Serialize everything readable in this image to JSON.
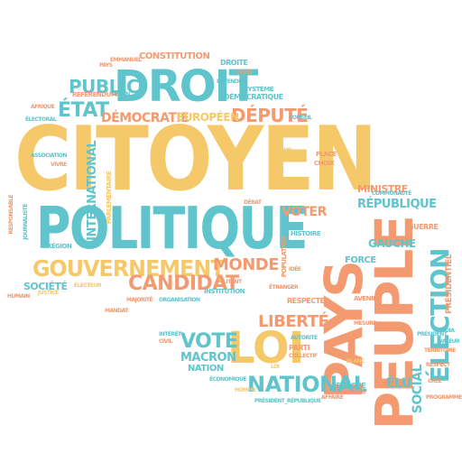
{
  "colors": {
    "yellow": "#f5c96a",
    "teal": "#5fc4cc",
    "orange": "#f39a70",
    "background": "#ffffff"
  },
  "words": {
    "citoyen": "CITOYEN",
    "politique": "POLITIQUE",
    "droit": "DROIT",
    "gouvernement": "GOUVERNEMENT",
    "pays": "PAYS",
    "peuple": "PEUPLE",
    "loi": "LOI",
    "election": "ÉLECTION",
    "candidat": "CANDIDAT",
    "national": "NATIONAL",
    "vote": "VOTE",
    "liberte": "LIBERTÉ",
    "etat": "ÉTAT",
    "democratie": "DÉMOCRATIE",
    "depute": "DÉPUTÉ",
    "monde": "MONDE",
    "public": "PUBLIC",
    "constitution": "CONSTITUTION",
    "republique": "RÉPUBLIQUE",
    "gauche": "GAUCHE",
    "europeen": "EUROPÉEN",
    "international": "INTERNATIONAL",
    "macron": "MACRON",
    "voter": "VOTER",
    "ministre": "MINISTRE",
    "social": "SOCIAL",
    "societe": "SOCIÉTÉ",
    "force": "FORCE",
    "nation": "NATION",
    "region": "RÉGION",
    "elu": "ÉLU",
    "droite": "DROITE",
    "communaute": "COMMUNAUTÉ",
    "referendum": "RÉFÉRENDUM",
    "emmanuel": "EMMANUEL",
    "pays_small": "PAYS",
    "histoire": "HISTOIRE",
    "militant": "MILITANT",
    "debat": "DÉBAT",
    "systeme": "SYSTÈME",
    "democratique": "DÉMOCRATIQUE",
    "guerre": "GUERRE",
    "president": "PRÉSIDENT",
    "presidentiel": "PRÉSIDENTIEL",
    "majorite": "MAJORITÉ",
    "organisation": "ORGANISATION",
    "institution": "INSTITUTION",
    "parti": "PARTI",
    "collectif": "COLLECTIF",
    "economique": "ÉCONOMIQUE",
    "interet": "INTÉRÊT",
    "civil": "CIVIL",
    "europe": "EUROPE",
    "accord": "ACCORD",
    "respect": "RESPECT",
    "programme": "PROGRAMME",
    "valeur": "VALEUR",
    "territoire": "TERRITOIRE",
    "choix": "CHOIX",
    "population": "POPULATION",
    "humain": "HUMAIN",
    "justice": "JUSTICE",
    "electeur": "ÉLECTEUR",
    "president_republique": "PRÉSIDENT_RÉPUBLIQUE",
    "crise": "CRISE",
    "defendre": "DÉFENDRE",
    "parlementaire": "PARLEMENTAIRE",
    "conseil": "CONSEIL",
    "union": "UNION",
    "afrique": "AFRIQUE",
    "vivre": "VIVRE",
    "association": "ASSOCIATION",
    "journaliste": "JOURNALISTE",
    "responsable": "RESPONSABLE",
    "avenir": "AVENIR",
    "mesure": "MESURE",
    "media": "MÉDIA",
    "place": "PLACE",
    "cree": "CRÉÉ",
    "affaire": "AFFAIRE",
    "tour": "TOUR",
    "etranger": "ÉTRANGER",
    "mandat": "MANDAT",
    "electoral": "ÉLECTORAL",
    "idee": "IDÉE",
    "autorite": "AUTORITÉ",
    "respecter": "RESPECTER",
    "homme": "HOMME",
    "blanc": "BLANC",
    "loi_small": "LOI"
  }
}
